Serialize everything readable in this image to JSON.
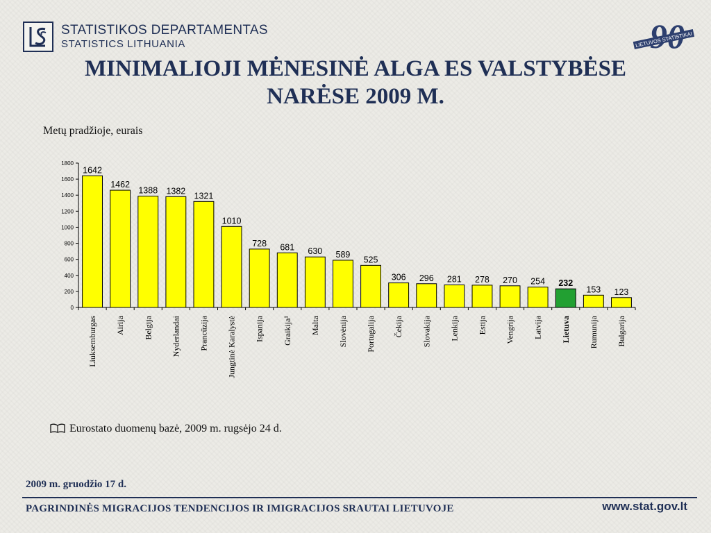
{
  "header": {
    "org_line1": "STATISTIKOS DEPARTAMENTAS",
    "org_line2": "STATISTICS LITHUANIA",
    "emblem_number": "90",
    "emblem_text": "LIETUVOS STATISTIKAI"
  },
  "title_line1": "MINIMALIOJI MĖNESINĖ ALGA ES VALSTYBĖSE",
  "title_line2": "NARĖSE 2009 M.",
  "subtitle": "Metų pradžioje, eurais",
  "chart_data": {
    "type": "bar",
    "categories": [
      "Liuksemburgas",
      "Airija",
      "Belgija",
      "Nyderlandai",
      "Prancūzija",
      "Jungtinė Karalystė",
      "Ispanija",
      "Graikija¹",
      "Malta",
      "Slovėnija",
      "Portugalija",
      "Čekija",
      "Slovakija",
      "Lenkija",
      "Estija",
      "Vengrija",
      "Latvija",
      "Lietuva",
      "Rumunija",
      "Bulgarija"
    ],
    "values": [
      1642,
      1462,
      1388,
      1382,
      1321,
      1010,
      728,
      681,
      630,
      589,
      525,
      306,
      296,
      281,
      278,
      270,
      254,
      232,
      153,
      123
    ],
    "highlight_index": 17,
    "colors": {
      "default": "#ffff00",
      "highlight": "#22a032"
    },
    "ylim": [
      0,
      1800
    ],
    "yticks": [
      0,
      200,
      400,
      600,
      800,
      1000,
      1200,
      1400,
      1600,
      1800
    ],
    "grid": false,
    "title": "",
    "xlabel": "",
    "ylabel": ""
  },
  "source": "Eurostato duomenų bazė, 2009 m. rugsėjo 24 d.",
  "date": "2009 m. gruodžio 17 d.",
  "footer": {
    "title": "PAGRINDINĖS MIGRACIJOS TENDENCIJOS IR IMIGRACIJOS SRAUTAI  LIETUVOJE",
    "url": "www.stat.gov.lt"
  }
}
